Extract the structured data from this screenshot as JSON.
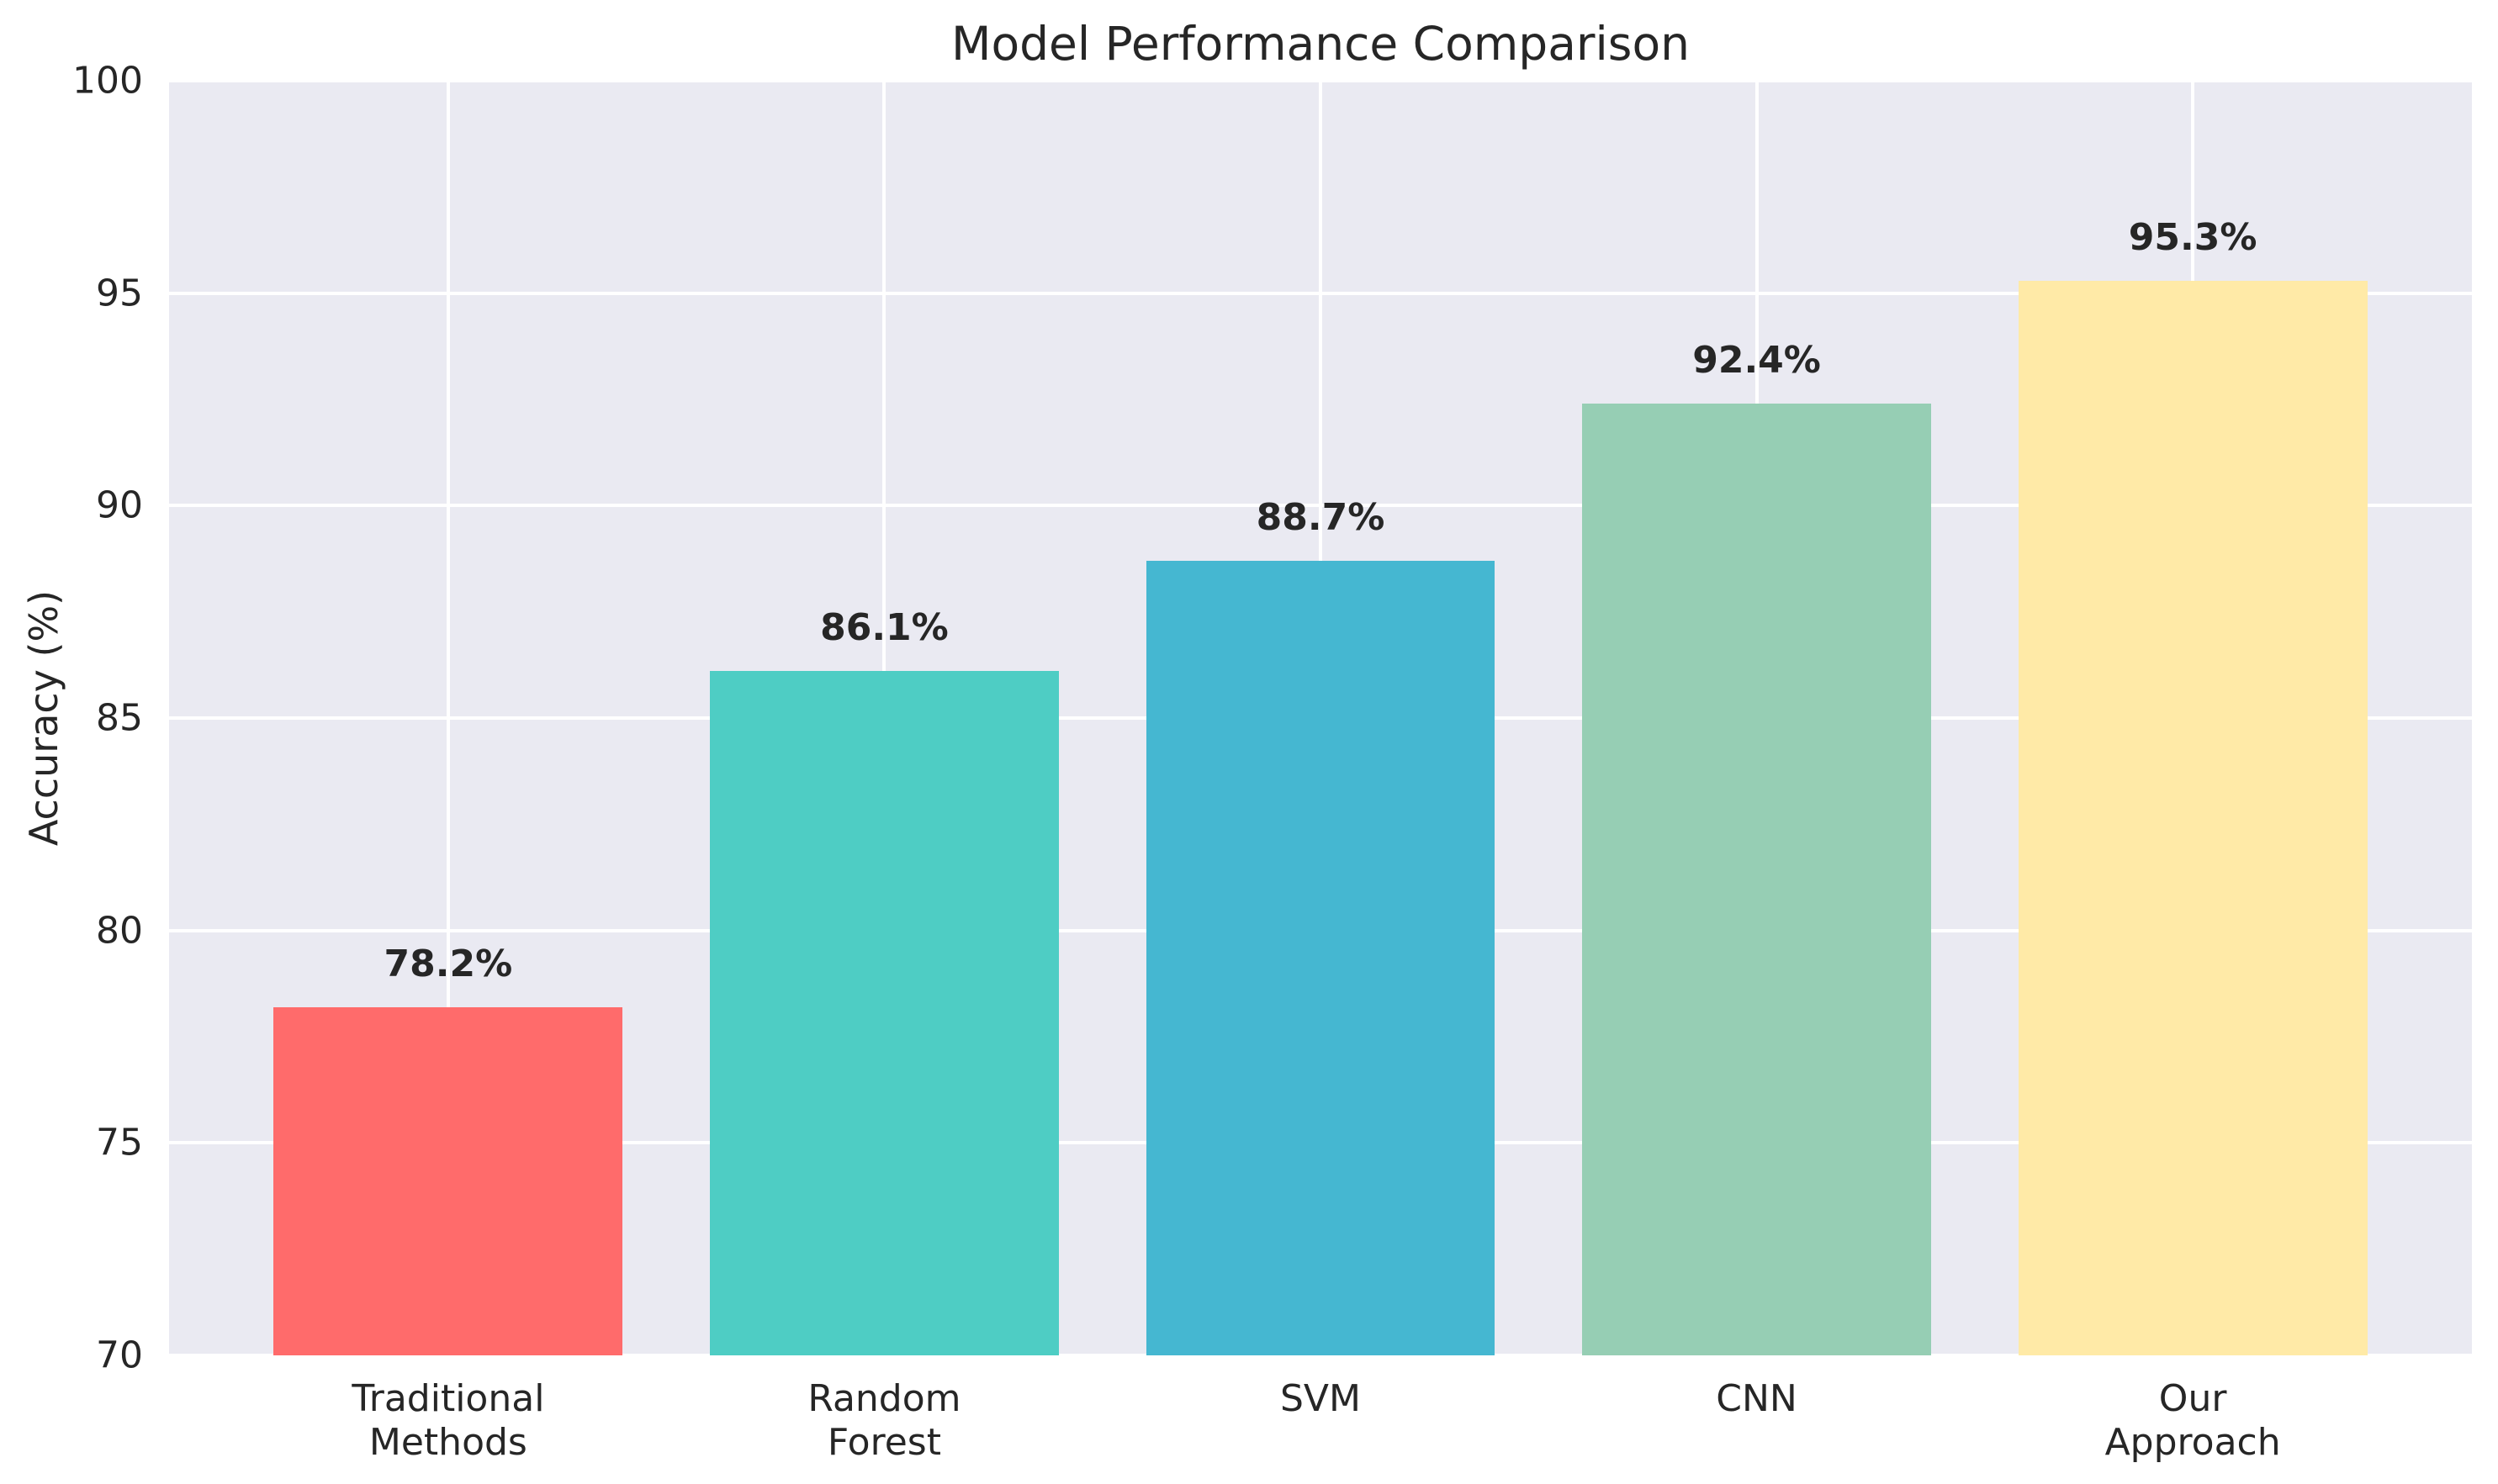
{
  "chart_data": {
    "type": "bar",
    "title": "Model Performance Comparison",
    "xlabel": "",
    "ylabel": "Accuracy (%)",
    "categories": [
      "Traditional Methods",
      "Random Forest",
      "SVM",
      "CNN",
      "Our Approach"
    ],
    "category_lines": [
      [
        "Traditional",
        "Methods"
      ],
      [
        "Random",
        "Forest"
      ],
      [
        "SVM"
      ],
      [
        "CNN"
      ],
      [
        "Our",
        "Approach"
      ]
    ],
    "values": [
      78.2,
      86.1,
      88.7,
      92.4,
      95.3
    ],
    "bar_labels": [
      "78.2%",
      "86.1%",
      "88.7%",
      "92.4%",
      "95.3%"
    ],
    "bar_colors": [
      "#ff6b6b",
      "#4ecdc4",
      "#45b7d1",
      "#96ceb4",
      "#ffeaa7"
    ],
    "ylim": [
      70,
      100
    ],
    "yticks": [
      70,
      75,
      80,
      85,
      90,
      95,
      100
    ],
    "grid": true,
    "legend": "none",
    "style": {
      "figure_background": "#ffffff",
      "plot_background": "#eaeaf2",
      "grid_color": "#ffffff",
      "text_color": "#262626"
    }
  }
}
